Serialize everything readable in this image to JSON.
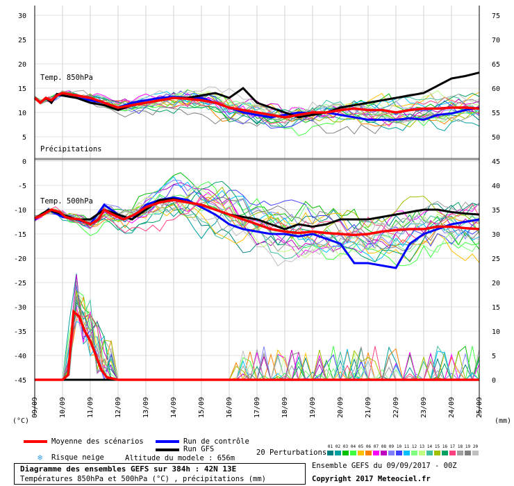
{
  "chart_data": {
    "type": "line",
    "title": "Diagramme des ensembles GEFS sur 384h : 42N 13E",
    "subtitle": "Températures 850hPa et 500hPa (°C) , précipitations (mm)",
    "x_ticks": [
      "09/09",
      "10/09",
      "11/09",
      "12/09",
      "13/09",
      "14/09",
      "15/09",
      "16/09",
      "17/09",
      "18/09",
      "19/09",
      "20/09",
      "21/09",
      "22/09",
      "23/09",
      "24/09",
      "25/09"
    ],
    "left_unit": "(°C)",
    "right_unit": "(mm)",
    "top_panel": {
      "label": "Temp. 850hPa",
      "ylim": [
        5,
        30
      ],
      "left_ticks": [
        30,
        25,
        20,
        15,
        10,
        5
      ],
      "right_ticks": [
        75,
        70,
        65,
        60,
        55,
        50
      ]
    },
    "bottom_panel": {
      "label": "Temp. 500hPa",
      "precip_label": "Précipitations",
      "ylim": [
        -45,
        0
      ],
      "left_ticks": [
        0,
        -5,
        -10,
        -15,
        -20,
        -25,
        -30,
        -35,
        -40,
        -45
      ],
      "right_ticks": [
        45,
        40,
        35,
        30,
        25,
        20,
        15,
        10,
        5,
        0
      ],
      "precip_ylim": [
        0,
        45
      ]
    },
    "series": [
      {
        "name": "Moyenne des scénarios",
        "color": "#ff0000",
        "t850": [
          [
            0,
            13
          ],
          [
            0.2,
            12
          ],
          [
            0.4,
            13
          ],
          [
            0.6,
            12.5
          ],
          [
            0.8,
            13.5
          ],
          [
            1,
            14
          ],
          [
            1.2,
            13.8
          ],
          [
            1.5,
            13.5
          ],
          [
            2,
            13
          ],
          [
            2.5,
            12
          ],
          [
            3,
            11
          ],
          [
            3.5,
            11.5
          ],
          [
            4,
            12
          ],
          [
            4.5,
            12.5
          ],
          [
            5,
            13
          ],
          [
            5.5,
            12.8
          ],
          [
            6,
            12.5
          ],
          [
            6.5,
            12
          ],
          [
            7,
            11
          ],
          [
            7.5,
            10.5
          ],
          [
            8,
            10
          ],
          [
            8.5,
            9.5
          ],
          [
            9,
            9
          ],
          [
            9.5,
            9.5
          ],
          [
            10,
            10
          ],
          [
            10.5,
            10
          ],
          [
            11,
            10.5
          ],
          [
            11.5,
            10.8
          ],
          [
            12,
            10.5
          ],
          [
            12.5,
            10.5
          ],
          [
            13,
            10
          ],
          [
            13.5,
            10.5
          ],
          [
            14,
            10.8
          ],
          [
            14.5,
            10.8
          ],
          [
            15,
            11
          ],
          [
            15.5,
            11
          ],
          [
            16,
            10.8
          ]
        ],
        "t500": [
          [
            0,
            -11.8
          ],
          [
            0.3,
            -11
          ],
          [
            0.6,
            -10
          ],
          [
            0.9,
            -10.5
          ],
          [
            1.1,
            -11.5
          ],
          [
            1.3,
            -11.8
          ],
          [
            1.6,
            -12
          ],
          [
            2,
            -13
          ],
          [
            2.3,
            -12
          ],
          [
            2.5,
            -10
          ],
          [
            2.8,
            -11
          ],
          [
            3.2,
            -12
          ],
          [
            3.6,
            -11
          ],
          [
            4,
            -9.5
          ],
          [
            4.5,
            -8.5
          ],
          [
            5,
            -8
          ],
          [
            5.5,
            -8.5
          ],
          [
            6,
            -9
          ],
          [
            6.5,
            -10
          ],
          [
            7,
            -11
          ],
          [
            7.5,
            -12
          ],
          [
            8,
            -13
          ],
          [
            8.5,
            -14
          ],
          [
            9,
            -14.5
          ],
          [
            9.5,
            -14.8
          ],
          [
            10,
            -14.5
          ],
          [
            10.5,
            -14.8
          ],
          [
            11,
            -15
          ],
          [
            11.5,
            -15.2
          ],
          [
            12,
            -15
          ],
          [
            12.5,
            -14.5
          ],
          [
            13,
            -14.2
          ],
          [
            13.5,
            -14
          ],
          [
            14,
            -14
          ],
          [
            14.5,
            -13.5
          ],
          [
            15,
            -13.5
          ],
          [
            15.5,
            -13.8
          ],
          [
            16,
            -14
          ]
        ],
        "precip": [
          [
            0,
            0
          ],
          [
            1,
            0
          ],
          [
            1.2,
            1
          ],
          [
            1.4,
            14
          ],
          [
            1.6,
            13
          ],
          [
            1.8,
            10
          ],
          [
            2,
            8
          ],
          [
            2.2,
            5
          ],
          [
            2.4,
            2
          ],
          [
            2.6,
            0.5
          ],
          [
            3,
            0
          ],
          [
            16,
            0
          ]
        ]
      },
      {
        "name": "Run de contrôle",
        "color": "#0000ff",
        "t850": [
          [
            0,
            13
          ],
          [
            0.2,
            12
          ],
          [
            0.4,
            13
          ],
          [
            0.6,
            12
          ],
          [
            0.8,
            13.5
          ],
          [
            1,
            13.5
          ],
          [
            1.5,
            13
          ],
          [
            2,
            12.5
          ],
          [
            2.5,
            12
          ],
          [
            3,
            11
          ],
          [
            3.5,
            12
          ],
          [
            4,
            12.5
          ],
          [
            4.5,
            13
          ],
          [
            5,
            13.2
          ],
          [
            5.5,
            13
          ],
          [
            6,
            13
          ],
          [
            6.5,
            12
          ],
          [
            7,
            11
          ],
          [
            7.5,
            10
          ],
          [
            8,
            9.5
          ],
          [
            8.5,
            9
          ],
          [
            9,
            9.5
          ],
          [
            9.5,
            10
          ],
          [
            10,
            9.8
          ],
          [
            10.5,
            10
          ],
          [
            11,
            9.5
          ],
          [
            11.5,
            9
          ],
          [
            12,
            8.5
          ],
          [
            12.5,
            8.5
          ],
          [
            13,
            8.5
          ],
          [
            13.5,
            8.8
          ],
          [
            14,
            8.5
          ],
          [
            14.5,
            9.5
          ],
          [
            15,
            9.8
          ],
          [
            15.5,
            10.5
          ],
          [
            16,
            11
          ]
        ],
        "t500": [
          [
            0,
            -12
          ],
          [
            0.5,
            -10
          ],
          [
            1,
            -11.5
          ],
          [
            1.5,
            -12
          ],
          [
            2,
            -13
          ],
          [
            2.5,
            -9
          ],
          [
            3,
            -11
          ],
          [
            3.5,
            -12
          ],
          [
            4,
            -9
          ],
          [
            4.5,
            -8
          ],
          [
            5,
            -7.5
          ],
          [
            5.5,
            -8
          ],
          [
            6,
            -9.5
          ],
          [
            6.5,
            -11
          ],
          [
            7,
            -13
          ],
          [
            7.5,
            -14
          ],
          [
            8,
            -14.5
          ],
          [
            8.5,
            -15
          ],
          [
            9,
            -15
          ],
          [
            9.5,
            -15.5
          ],
          [
            10,
            -15
          ],
          [
            10.5,
            -16
          ],
          [
            11,
            -17
          ],
          [
            11.5,
            -21
          ],
          [
            12,
            -21
          ],
          [
            12.5,
            -21.5
          ],
          [
            13,
            -22
          ],
          [
            13.5,
            -17
          ],
          [
            14,
            -15
          ],
          [
            14.5,
            -14
          ],
          [
            15,
            -13
          ],
          [
            15.5,
            -12.5
          ],
          [
            16,
            -12
          ]
        ],
        "precip": [
          [
            0,
            0
          ],
          [
            16,
            0
          ]
        ]
      },
      {
        "name": "Run GFS",
        "color": "#000000",
        "t850": [
          [
            0,
            13
          ],
          [
            0.2,
            12
          ],
          [
            0.4,
            13
          ],
          [
            0.6,
            12
          ],
          [
            0.8,
            13.8
          ],
          [
            1,
            13.5
          ],
          [
            1.5,
            13
          ],
          [
            2,
            12
          ],
          [
            2.5,
            11.5
          ],
          [
            3,
            10.5
          ],
          [
            3.5,
            11.5
          ],
          [
            4,
            12
          ],
          [
            4.5,
            12.5
          ],
          [
            5,
            13
          ],
          [
            5.5,
            13
          ],
          [
            6,
            13.5
          ],
          [
            6.5,
            14
          ],
          [
            7,
            13
          ],
          [
            7.5,
            15
          ],
          [
            8,
            12
          ],
          [
            8.5,
            11
          ],
          [
            9,
            10
          ],
          [
            9.5,
            9
          ],
          [
            10,
            9.5
          ],
          [
            10.5,
            10
          ],
          [
            11,
            11
          ],
          [
            11.5,
            11.5
          ],
          [
            12,
            12
          ],
          [
            12.5,
            12.5
          ],
          [
            13,
            13
          ],
          [
            13.5,
            13.5
          ],
          [
            14,
            14
          ],
          [
            14.5,
            15.5
          ],
          [
            15,
            17
          ],
          [
            15.5,
            17.5
          ],
          [
            16,
            18.2
          ]
        ],
        "t500": [
          [
            0,
            -11.8
          ],
          [
            0.5,
            -10
          ],
          [
            1,
            -11
          ],
          [
            1.5,
            -12
          ],
          [
            2,
            -12
          ],
          [
            2.5,
            -10
          ],
          [
            3,
            -11
          ],
          [
            3.5,
            -12
          ],
          [
            4,
            -10
          ],
          [
            4.5,
            -8
          ],
          [
            5,
            -7.8
          ],
          [
            5.5,
            -8.5
          ],
          [
            6,
            -9
          ],
          [
            6.5,
            -10
          ],
          [
            7,
            -11
          ],
          [
            7.5,
            -11.5
          ],
          [
            8,
            -12
          ],
          [
            8.5,
            -13
          ],
          [
            9,
            -14
          ],
          [
            9.5,
            -13
          ],
          [
            10,
            -13.5
          ],
          [
            10.5,
            -13
          ],
          [
            11,
            -12
          ],
          [
            11.5,
            -12
          ],
          [
            12,
            -12
          ],
          [
            12.5,
            -11.5
          ],
          [
            13,
            -11
          ],
          [
            13.5,
            -10.5
          ],
          [
            14,
            -10
          ],
          [
            14.5,
            -10
          ],
          [
            15,
            -10.5
          ],
          [
            15.5,
            -10.8
          ],
          [
            16,
            -11
          ]
        ],
        "precip": [
          [
            0,
            0
          ],
          [
            16,
            0
          ]
        ]
      }
    ],
    "legend": {
      "mean_label": "Moyenne des scénarios",
      "control_label": "Run de contrôle",
      "gfs_label": "Run GFS",
      "snow_label": "Risque neige",
      "altitude_label": "Altitude du modele : 656m",
      "perturbations_label": "20 Perturbations",
      "perturbation_codes": [
        "01",
        "02",
        "03",
        "04",
        "05",
        "06",
        "07",
        "08",
        "09",
        "10",
        "11",
        "12",
        "13",
        "14",
        "15",
        "16",
        "17",
        "18",
        "19",
        "20"
      ],
      "perturbation_colors": [
        "#008080",
        "#00a0a0",
        "#00c000",
        "#40ff40",
        "#ffc000",
        "#ff8000",
        "#ff00ff",
        "#c000c0",
        "#8080ff",
        "#4040ff",
        "#00c0ff",
        "#80ff80",
        "#c0ff80",
        "#40c0a0",
        "#a0c000",
        "#00a060",
        "#ff4080",
        "#a0a0a0",
        "#808080",
        "#c0c0c0"
      ]
    },
    "footer": {
      "run_info": "Ensemble GEFS du 09/09/2017 - 00Z",
      "copyright": "Copyright 2017 Meteociel.fr"
    }
  }
}
